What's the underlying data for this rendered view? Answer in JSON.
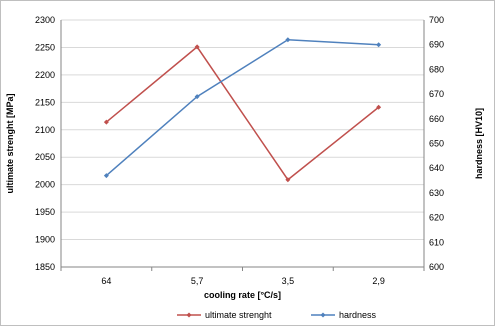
{
  "chart_data": {
    "type": "line",
    "categories": [
      "64",
      "5,7",
      "3,5",
      "2,9"
    ],
    "xlabel": "cooling rate [°C/s]",
    "ylabel_left": "ultimate strenght [MPa]",
    "ylabel_right": "hardness [HV10]",
    "ylim_left": [
      1850,
      2300
    ],
    "ylim_right": [
      600,
      700
    ],
    "yticks_left": [
      1850,
      1900,
      1950,
      2000,
      2050,
      2100,
      2150,
      2200,
      2250,
      2300
    ],
    "yticks_right": [
      600,
      610,
      620,
      630,
      640,
      650,
      660,
      670,
      680,
      690,
      700
    ],
    "grid": true,
    "legend_position": "bottom",
    "series": [
      {
        "name": "ultimate strenght",
        "axis": "left",
        "color": "#c0504d",
        "values": [
          2114,
          2251,
          2009,
          2141
        ]
      },
      {
        "name": "hardness",
        "axis": "right",
        "color": "#4f81bd",
        "values": [
          637,
          669,
          692,
          690
        ]
      }
    ]
  }
}
